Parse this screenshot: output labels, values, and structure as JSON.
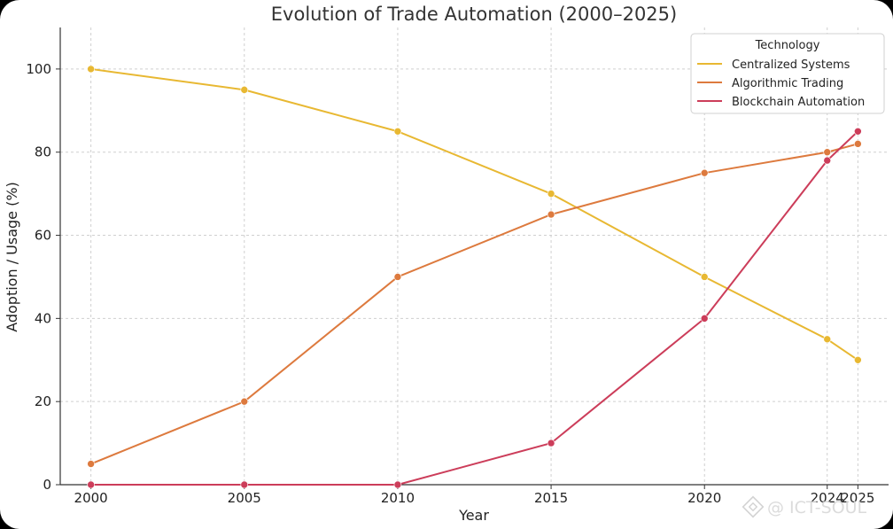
{
  "chart_data": {
    "type": "line",
    "title": "Evolution of Trade Automation (2000–2025)",
    "xlabel": "Year",
    "ylabel": "Adoption / Usage (%)",
    "x": [
      2000,
      2005,
      2010,
      2015,
      2020,
      2024,
      2025
    ],
    "x_tick_labels": [
      "2000",
      "2005",
      "2010",
      "2015",
      "2020",
      "2024",
      "2025"
    ],
    "y_ticks": [
      0,
      20,
      40,
      60,
      80,
      100
    ],
    "xlim": [
      1999,
      2026
    ],
    "ylim": [
      0,
      110
    ],
    "grid": true,
    "legend_title": "Technology",
    "legend_position": "top-right",
    "series": [
      {
        "name": "Centralized Systems",
        "color": "#e8b832",
        "values": [
          100,
          95,
          85,
          70,
          50,
          35,
          30
        ]
      },
      {
        "name": "Algorithmic Trading",
        "color": "#dd7a3e",
        "values": [
          5,
          20,
          50,
          65,
          75,
          80,
          82
        ]
      },
      {
        "name": "Blockchain Automation",
        "color": "#cc3d5a",
        "values": [
          0,
          0,
          0,
          10,
          40,
          78,
          85
        ]
      }
    ]
  },
  "watermark": "@ ICT-SOUL",
  "watermark_icon": "binance-logo-icon"
}
